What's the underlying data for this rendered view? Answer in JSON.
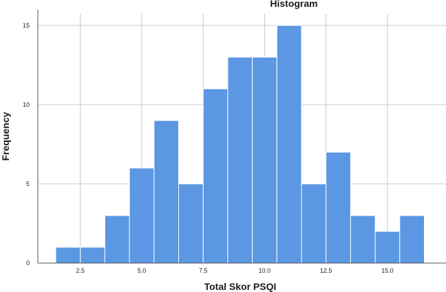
{
  "chart_data": {
    "type": "bar",
    "title": "Histogram",
    "xlabel": "Total Skor PSQI",
    "ylabel": "Frequency",
    "bins": [
      {
        "x": 2,
        "value": 1
      },
      {
        "x": 3,
        "value": 1
      },
      {
        "x": 4,
        "value": 3
      },
      {
        "x": 5,
        "value": 6
      },
      {
        "x": 6,
        "value": 9
      },
      {
        "x": 7,
        "value": 5
      },
      {
        "x": 8,
        "value": 11
      },
      {
        "x": 9,
        "value": 13
      },
      {
        "x": 10,
        "value": 13
      },
      {
        "x": 11,
        "value": 15
      },
      {
        "x": 12,
        "value": 5
      },
      {
        "x": 13,
        "value": 7
      },
      {
        "x": 14,
        "value": 3
      },
      {
        "x": 15,
        "value": 2
      },
      {
        "x": 16,
        "value": 3
      }
    ],
    "bin_width": 1,
    "xlim": [
      1.0,
      17.5
    ],
    "ylim": [
      0,
      15
    ],
    "x_ticks": [
      {
        "value": 2.5,
        "label": "2.5"
      },
      {
        "value": 5.0,
        "label": "5.0"
      },
      {
        "value": 7.5,
        "label": "7.5"
      },
      {
        "value": 10.0,
        "label": "10.0"
      },
      {
        "value": 12.5,
        "label": "12.5"
      },
      {
        "value": 15.0,
        "label": "15.0"
      }
    ],
    "y_ticks": [
      {
        "value": 0,
        "label": "0"
      },
      {
        "value": 5,
        "label": "5"
      },
      {
        "value": 10,
        "label": "10"
      },
      {
        "value": 15,
        "label": "15"
      }
    ],
    "grid": true,
    "colors": {
      "bar": "#5b97e3",
      "grid": "#c8c8c8"
    }
  }
}
